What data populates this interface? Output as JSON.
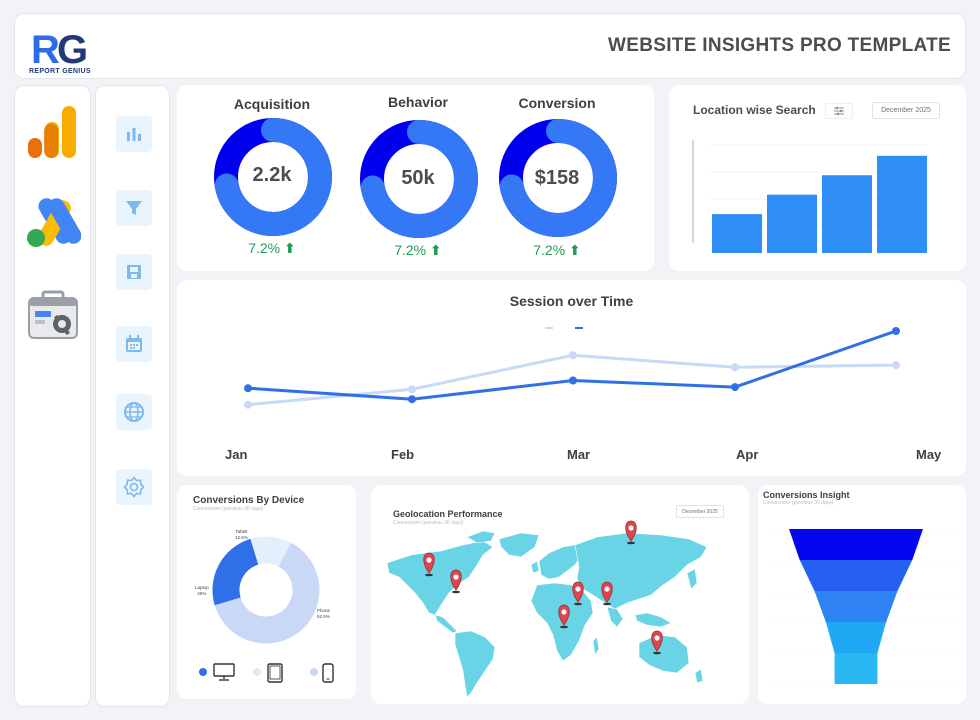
{
  "header": {
    "logo_text": "REPORT GENIUS",
    "logo_lettering": "RG",
    "title": "WEBSITE INSIGHTS PRO TEMPLATE"
  },
  "app_sidebar": {
    "items": [
      {
        "icon": "google-analytics-icon"
      },
      {
        "icon": "google-ads-icon"
      },
      {
        "icon": "search-console-icon"
      }
    ]
  },
  "nav_sidebar": {
    "items": [
      {
        "icon": "bar-chart-icon"
      },
      {
        "icon": "filter-icon"
      },
      {
        "icon": "save-icon"
      },
      {
        "icon": "calendar-icon"
      },
      {
        "icon": "globe-icon"
      },
      {
        "icon": "settings-icon"
      }
    ]
  },
  "kpis": [
    {
      "title": "Acquisition",
      "value": "2.2k",
      "change": "7.2%",
      "fill": 0.72
    },
    {
      "title": "Behavior",
      "value": "50k",
      "change": "7.2%",
      "fill": 0.72
    },
    {
      "title": "Conversion",
      "value": "$158",
      "change": "7.2%",
      "fill": 0.72
    }
  ],
  "location": {
    "title": "Location wise Search",
    "date": "December 2025"
  },
  "session": {
    "title": "Session over Time"
  },
  "device": {
    "title": "Conversions By Device",
    "subtitle": "Conversions (previous 30 days)",
    "labels": {
      "tablet": "Tablet",
      "tablet_pct": "12.5%",
      "laptop": "Laptop",
      "laptop_pct": "25%",
      "phone": "Phone",
      "phone_pct": "62.5%"
    },
    "legend": [
      {
        "icon": "desktop-icon",
        "color": "#2f6fe8"
      },
      {
        "icon": "tablet-icon",
        "color": "#dcecfb"
      },
      {
        "icon": "phone-icon",
        "color": "#c8d8f5"
      }
    ]
  },
  "geo": {
    "title": "Geolocation Performance",
    "subtitle": "Conversions (previous 30 days)",
    "date": "December 2025"
  },
  "funnel": {
    "title": "Conversions Insight",
    "subtitle": "Conversions (previous 30 days)"
  },
  "colors": {
    "primary": "#2f7df6",
    "dark_blue": "#0000ee",
    "ring_light": "#3478f6",
    "positive": "#1f9d55",
    "map": "#69d4e6",
    "pin": "#e0444e"
  },
  "chart_data": [
    {
      "type": "bar",
      "title": "Location wise Search",
      "categories": [
        "",
        "",
        "",
        ""
      ],
      "values": [
        36,
        54,
        72,
        90
      ],
      "ylim": [
        0,
        100
      ],
      "grid": true
    },
    {
      "type": "line",
      "title": "Session over Time",
      "categories": [
        "Jan",
        "Feb",
        "Mar",
        "Apr",
        "May"
      ],
      "series": [
        {
          "name": "",
          "color": "#c9d9f8",
          "values": [
            23,
            37,
            68,
            57,
            59
          ]
        },
        {
          "name": "",
          "color": "#2f6fe8",
          "values": [
            38,
            28,
            45,
            39,
            90
          ]
        }
      ],
      "ylim": [
        0,
        100
      ],
      "legend": "top-center"
    },
    {
      "type": "pie",
      "title": "Conversions By Device",
      "slices": [
        {
          "label": "Tablet",
          "value": 12.5,
          "color": "#e3f0fc"
        },
        {
          "label": "Phone",
          "value": 62.5,
          "color": "#c8d8f5"
        },
        {
          "label": "Laptop",
          "value": 25,
          "color": "#2f6fe8"
        }
      ]
    },
    {
      "type": "bar",
      "title": "Conversions Insight",
      "values": [
        100,
        84,
        62,
        45,
        32
      ],
      "colors": [
        "#0505f0",
        "#2660f0",
        "#2f82f2",
        "#20a8f4",
        "#29b7f2"
      ]
    }
  ]
}
